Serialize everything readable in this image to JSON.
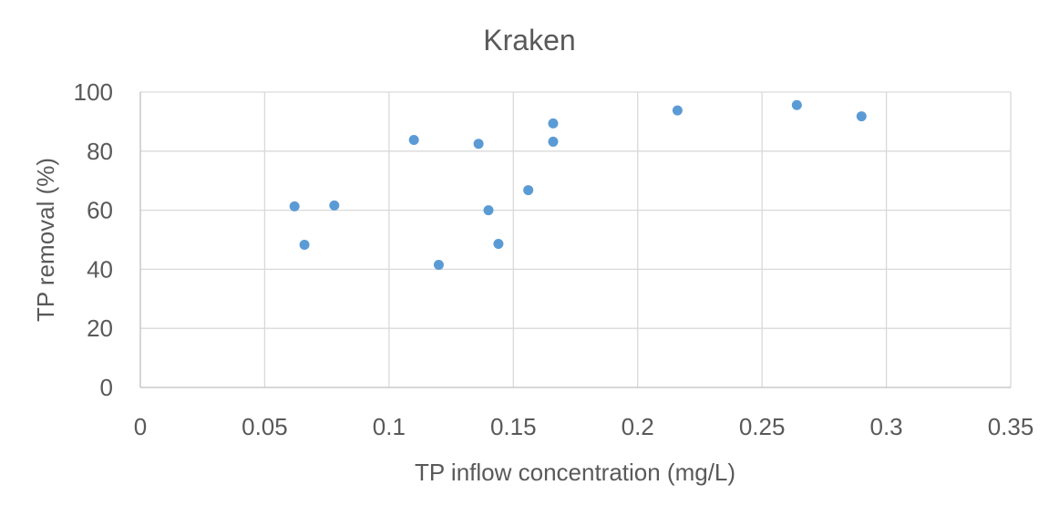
{
  "chart_data": {
    "type": "scatter",
    "title": "Kraken",
    "xlabel": "TP inflow concentration (mg/L)",
    "ylabel": "TP removal (%)",
    "xlim": [
      0,
      0.35
    ],
    "ylim": [
      0,
      100
    ],
    "x_ticks": [
      "0",
      "0.05",
      "0.1",
      "0.15",
      "0.2",
      "0.25",
      "0.3",
      "0.35"
    ],
    "y_ticks": [
      "0",
      "20",
      "40",
      "60",
      "80",
      "100"
    ],
    "grid": true,
    "legend": "none",
    "marker_color": "#5b9bd5",
    "points": [
      {
        "x": 0.062,
        "y": 61.3
      },
      {
        "x": 0.066,
        "y": 48.3
      },
      {
        "x": 0.078,
        "y": 61.6
      },
      {
        "x": 0.11,
        "y": 83.8
      },
      {
        "x": 0.12,
        "y": 41.5
      },
      {
        "x": 0.136,
        "y": 82.5
      },
      {
        "x": 0.14,
        "y": 60.0
      },
      {
        "x": 0.144,
        "y": 48.6
      },
      {
        "x": 0.156,
        "y": 66.8
      },
      {
        "x": 0.166,
        "y": 89.4
      },
      {
        "x": 0.166,
        "y": 83.2
      },
      {
        "x": 0.216,
        "y": 93.8
      },
      {
        "x": 0.264,
        "y": 95.6
      },
      {
        "x": 0.29,
        "y": 91.8
      }
    ]
  }
}
